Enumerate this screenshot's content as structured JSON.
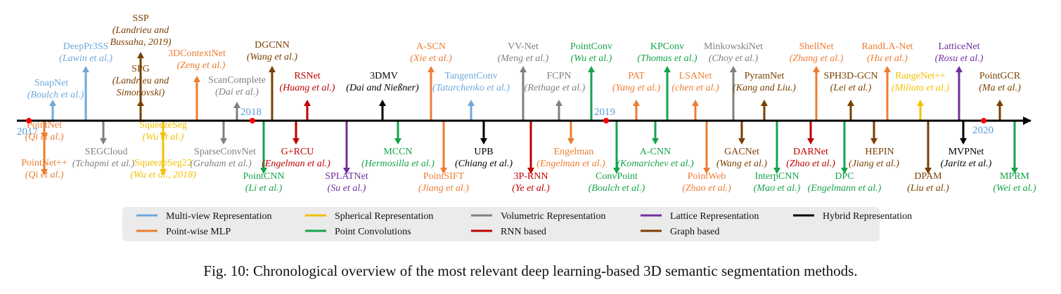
{
  "colors": {
    "multiview": "#6fa8dc",
    "pointwise": "#ed7d31",
    "spherical": "#f2c200",
    "conv": "#16a34a",
    "volumetric": "#808080",
    "rnn": "#c00000",
    "lattice": "#7030a0",
    "graph": "#7b3f00",
    "hybrid": "#000000",
    "axis": "#000000",
    "year_marker": "#ff0000",
    "year_text": "#5b9bd5",
    "legend_bg": "#ebebeb"
  },
  "years": [
    "2017",
    "2018",
    "2019",
    "2020"
  ],
  "legend": [
    {
      "label": "Multi-view Representation",
      "cat": "multiview"
    },
    {
      "label": "Spherical Representation",
      "cat": "spherical"
    },
    {
      "label": "Volumetric Representation",
      "cat": "volumetric"
    },
    {
      "label": "Lattice Representation",
      "cat": "lattice"
    },
    {
      "label": "Hybrid Representation",
      "cat": "hybrid"
    },
    {
      "label": "Point-wise MLP",
      "cat": "pointwise"
    },
    {
      "label": "Point Convolutions",
      "cat": "conv"
    },
    {
      "label": "RNN based",
      "cat": "rnn"
    },
    {
      "label": "Graph based",
      "cat": "graph"
    }
  ],
  "methods": [
    {
      "name": "SnapNet",
      "authors": [
        "Boulch et al.)"
      ],
      "cat": "multiview",
      "side": "up"
    },
    {
      "name": "DeepPr3SS",
      "authors": [
        "Lawin et al.)"
      ],
      "cat": "multiview",
      "side": "up"
    },
    {
      "name": "SSP",
      "authors": [
        "Landrieu and",
        "Bussaha, 2019)"
      ],
      "cat": "graph",
      "side": "up"
    },
    {
      "name": "SPG",
      "authors": [
        "Landrieu and",
        "Simonovski)"
      ],
      "cat": "graph",
      "side": "up"
    },
    {
      "name": "3DContextNet",
      "authors": [
        "Zeng et al.)"
      ],
      "cat": "pointwise",
      "side": "up"
    },
    {
      "name": "ScanComplete",
      "authors": [
        "Dai et al.)"
      ],
      "cat": "volumetric",
      "side": "up"
    },
    {
      "name": "DGCNN",
      "authors": [
        "Wang et al.)"
      ],
      "cat": "graph",
      "side": "up"
    },
    {
      "name": "RSNet",
      "authors": [
        "Huang et al.)"
      ],
      "cat": "rnn",
      "side": "up"
    },
    {
      "name": "3DMV",
      "authors": [
        "Dai and Nießner)"
      ],
      "cat": "hybrid",
      "side": "up"
    },
    {
      "name": "A-SCN",
      "authors": [
        "Xie et al.)"
      ],
      "cat": "pointwise",
      "side": "up"
    },
    {
      "name": "TangentConv",
      "authors": [
        "Tatarchenko et al.)"
      ],
      "cat": "multiview",
      "side": "up"
    },
    {
      "name": "VV-Net",
      "authors": [
        "Meng et al.)"
      ],
      "cat": "volumetric",
      "side": "up"
    },
    {
      "name": "FCPN",
      "authors": [
        "Rethage et al.)"
      ],
      "cat": "volumetric",
      "side": "up"
    },
    {
      "name": "PointConv",
      "authors": [
        "Wu et al.)"
      ],
      "cat": "conv",
      "side": "up"
    },
    {
      "name": "PAT",
      "authors": [
        "Yang et al.)"
      ],
      "cat": "pointwise",
      "side": "up"
    },
    {
      "name": "KPConv",
      "authors": [
        "Thomas et al.)"
      ],
      "cat": "conv",
      "side": "up"
    },
    {
      "name": "LSANet",
      "authors": [
        "chen et al.)"
      ],
      "cat": "pointwise",
      "side": "up"
    },
    {
      "name": "MinkowskiNet",
      "authors": [
        "Choy et al.)"
      ],
      "cat": "volumetric",
      "side": "up"
    },
    {
      "name": "PyramNet",
      "authors": [
        "Kang and Liu.)"
      ],
      "cat": "graph",
      "side": "up"
    },
    {
      "name": "ShellNet",
      "authors": [
        "Zhang et al.)"
      ],
      "cat": "pointwise",
      "side": "up"
    },
    {
      "name": "SPH3D-GCN",
      "authors": [
        "Lei et al.)"
      ],
      "cat": "graph",
      "side": "up"
    },
    {
      "name": "RandLA-Net",
      "authors": [
        "Hu et al.)"
      ],
      "cat": "pointwise",
      "side": "up"
    },
    {
      "name": "RangeNet++",
      "authors": [
        "Milioto et al.)"
      ],
      "cat": "spherical",
      "side": "up"
    },
    {
      "name": "LatticeNet",
      "authors": [
        "Rosu et al.)"
      ],
      "cat": "lattice",
      "side": "up"
    },
    {
      "name": "PointGCR",
      "authors": [
        "Ma et al.)"
      ],
      "cat": "graph",
      "side": "up"
    },
    {
      "name": "PointNet",
      "authors": [
        "Qi et al.)"
      ],
      "cat": "pointwise",
      "side": "down"
    },
    {
      "name": "PointNet++",
      "authors": [
        "Qi et al.)"
      ],
      "cat": "pointwise",
      "side": "down"
    },
    {
      "name": "SEGCloud",
      "authors": [
        "Tchapmi et al.)"
      ],
      "cat": "volumetric",
      "side": "down"
    },
    {
      "name": "SqueezeSeg",
      "authors": [
        "Wu et al.)"
      ],
      "cat": "spherical",
      "side": "down"
    },
    {
      "name": "SqueezeSeg22",
      "authors": [
        "Wu et al., 2018)"
      ],
      "cat": "spherical",
      "side": "down"
    },
    {
      "name": "SparseConvNet",
      "authors": [
        "Graham et al.)"
      ],
      "cat": "volumetric",
      "side": "down"
    },
    {
      "name": "PointCNN",
      "authors": [
        "Li et al.)"
      ],
      "cat": "conv",
      "side": "down"
    },
    {
      "name": "G+RCU",
      "authors": [
        "Engelman et al.)"
      ],
      "cat": "rnn",
      "side": "down"
    },
    {
      "name": "SPLATNet",
      "authors": [
        "Su et al.)"
      ],
      "cat": "lattice",
      "side": "down"
    },
    {
      "name": "MCCN",
      "authors": [
        "Hermosilla et al.)"
      ],
      "cat": "conv",
      "side": "down"
    },
    {
      "name": "PointSIFT",
      "authors": [
        "Jiang et al.)"
      ],
      "cat": "pointwise",
      "side": "down"
    },
    {
      "name": "UPB",
      "authors": [
        "Chiang et al.)"
      ],
      "cat": "hybrid",
      "side": "down"
    },
    {
      "name": "3P-RNN",
      "authors": [
        "Ye et al.)"
      ],
      "cat": "rnn",
      "side": "down"
    },
    {
      "name": "Engelman",
      "authors": [
        "Engelman et al.)"
      ],
      "cat": "pointwise",
      "side": "down"
    },
    {
      "name": "ConvPoint",
      "authors": [
        "Boulch et al.)"
      ],
      "cat": "conv",
      "side": "down"
    },
    {
      "name": "A-CNN",
      "authors": [
        "Komarichev et al.)"
      ],
      "cat": "conv",
      "side": "down"
    },
    {
      "name": "PointWeb",
      "authors": [
        "Zhao et al.)"
      ],
      "cat": "pointwise",
      "side": "down"
    },
    {
      "name": "GACNet",
      "authors": [
        "Wang et al.)"
      ],
      "cat": "graph",
      "side": "down"
    },
    {
      "name": "InterpCNN",
      "authors": [
        "Mao et al.)"
      ],
      "cat": "conv",
      "side": "down"
    },
    {
      "name": "DARNet",
      "authors": [
        "Zhao et al.)"
      ],
      "cat": "rnn",
      "side": "down"
    },
    {
      "name": "DPC",
      "authors": [
        "Engelmann et al.)"
      ],
      "cat": "conv",
      "side": "down"
    },
    {
      "name": "HEPIN",
      "authors": [
        "Jiang et al.)"
      ],
      "cat": "graph",
      "side": "down"
    },
    {
      "name": "DPAM",
      "authors": [
        "Liu et al.)"
      ],
      "cat": "graph",
      "side": "down"
    },
    {
      "name": "MVPNet",
      "authors": [
        "Jaritz et al.)"
      ],
      "cat": "hybrid",
      "side": "down"
    },
    {
      "name": "MPRM",
      "authors": [
        "Wei et al.)"
      ],
      "cat": "conv",
      "side": "down"
    }
  ],
  "caption": "Fig. 10: Chronological overview of the most relevant deep learning-based 3D semantic segmentation methods."
}
